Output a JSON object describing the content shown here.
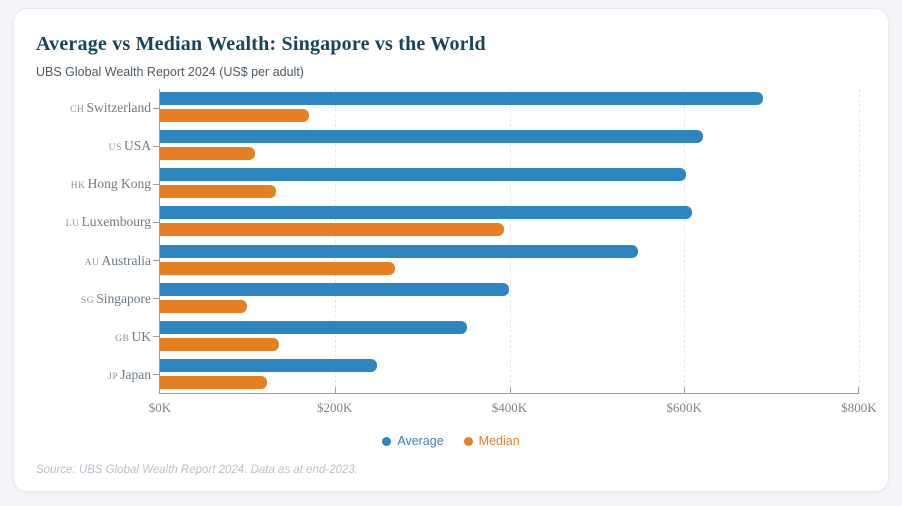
{
  "header": {
    "title": "Average vs Median Wealth: Singapore vs the World",
    "subtitle": "UBS Global Wealth Report 2024 (US$ per adult)"
  },
  "chart_data": {
    "type": "bar",
    "orientation": "horizontal",
    "title": "Average vs Median Wealth: Singapore vs the World",
    "subtitle": "UBS Global Wealth Report 2024 (US$ per adult)",
    "category_codes": [
      "CH",
      "US",
      "HK",
      "LU",
      "AU",
      "SG",
      "GB",
      "JP"
    ],
    "categories": [
      "Switzerland",
      "USA",
      "Hong Kong",
      "Luxembourg",
      "Australia",
      "Singapore",
      "UK",
      "Japan"
    ],
    "series": [
      {
        "name": "Average",
        "color": "#2e86c1",
        "values_usd_thousands": [
          690,
          622,
          602,
          609,
          547,
          399,
          351,
          248
        ]
      },
      {
        "name": "Median",
        "color": "#e67e22",
        "values_usd_thousands": [
          171,
          109,
          133,
          394,
          269,
          99,
          136,
          123
        ]
      }
    ],
    "xlim_usd_thousands": [
      0,
      800
    ],
    "x_tick_labels": [
      "$0K",
      "$200K",
      "$400K",
      "$600K",
      "$800K"
    ],
    "grid": "vertical-dashed",
    "legend_position": "bottom-center"
  },
  "legend": {
    "average_label": "Average",
    "median_label": "Median",
    "average_color": "#3d80c2",
    "median_color": "#e67e22"
  },
  "footer": {
    "source": "Source: UBS Global Wealth Report 2024. Data as at end-2023."
  }
}
